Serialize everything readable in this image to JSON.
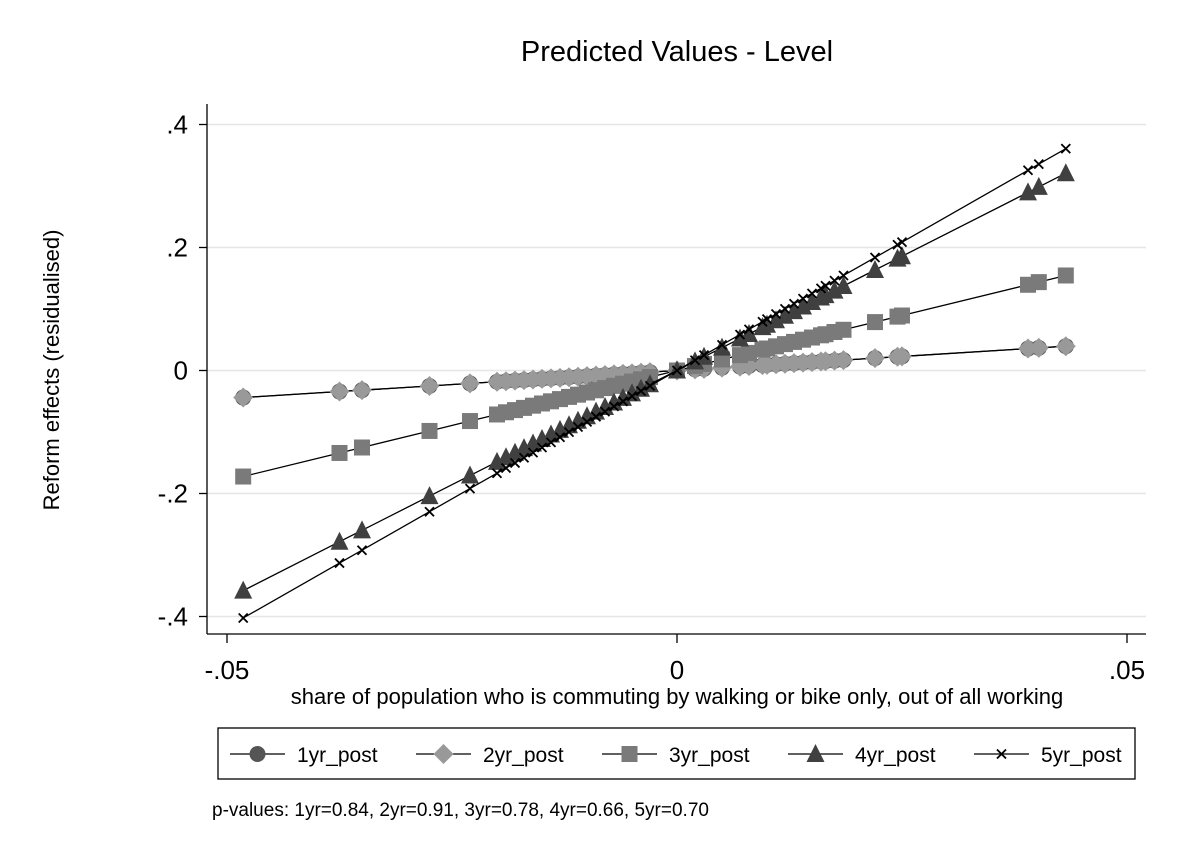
{
  "chart_data": {
    "type": "line",
    "title": "Predicted Values - Level",
    "xlabel": "share of population who is commuting by walking or bike only, out of all working",
    "ylabel": "Reform effects (residualised)",
    "xlim": [
      -0.05,
      0.05
    ],
    "ylim": [
      -0.4,
      0.4
    ],
    "x_ticks": [
      -0.05,
      0,
      0.05
    ],
    "x_tick_labels": [
      "-.05",
      "0",
      ".05"
    ],
    "y_ticks": [
      -0.4,
      -0.2,
      0,
      0.2,
      0.4
    ],
    "y_tick_labels": [
      "-.4",
      "-.2",
      "0",
      ".2",
      ".4"
    ],
    "grid": "horizontal",
    "legend_position": "bottom",
    "x": [
      -0.0482,
      -0.0375,
      -0.035,
      -0.0275,
      -0.023,
      -0.02,
      -0.019,
      -0.018,
      -0.017,
      -0.016,
      -0.015,
      -0.014,
      -0.013,
      -0.012,
      -0.011,
      -0.01,
      -0.009,
      -0.008,
      -0.007,
      -0.006,
      -0.005,
      -0.004,
      -0.003,
      0.0,
      0.002,
      0.003,
      0.005,
      0.007,
      0.008,
      0.0095,
      0.01,
      0.011,
      0.012,
      0.013,
      0.014,
      0.015,
      0.016,
      0.0165,
      0.0175,
      0.0185,
      0.022,
      0.0245,
      0.025,
      0.039,
      0.0402,
      0.0432
    ],
    "series": [
      {
        "name": "1yr_post",
        "marker": "circle",
        "color": "#555555",
        "values": [
          -0.044,
          -0.0342,
          -0.032,
          -0.0252,
          -0.021,
          -0.0183,
          -0.0174,
          -0.0165,
          -0.0156,
          -0.0146,
          -0.0137,
          -0.0128,
          -0.0119,
          -0.011,
          -0.0101,
          -0.0092,
          -0.0082,
          -0.0073,
          -0.0064,
          -0.0055,
          -0.0046,
          -0.0037,
          -0.0027,
          0.0,
          0.0018,
          0.0027,
          0.0046,
          0.0064,
          0.0073,
          0.0087,
          0.0092,
          0.0101,
          0.011,
          0.0119,
          0.0128,
          0.0137,
          0.0146,
          0.0151,
          0.016,
          0.0169,
          0.0201,
          0.0224,
          0.0229,
          0.0357,
          0.0368,
          0.0395
        ]
      },
      {
        "name": "2yr_post",
        "marker": "diamond",
        "color": "#999999",
        "values": [
          -0.044,
          -0.0342,
          -0.032,
          -0.0252,
          -0.021,
          -0.0183,
          -0.0174,
          -0.0165,
          -0.0156,
          -0.0146,
          -0.0137,
          -0.0128,
          -0.0119,
          -0.011,
          -0.0101,
          -0.0092,
          -0.0082,
          -0.0073,
          -0.0064,
          -0.0055,
          -0.0046,
          -0.0037,
          -0.0027,
          0.0,
          0.0018,
          0.0027,
          0.0046,
          0.0064,
          0.0073,
          0.0087,
          0.0092,
          0.0101,
          0.011,
          0.0119,
          0.0128,
          0.0137,
          0.0146,
          0.0151,
          0.016,
          0.0169,
          0.0201,
          0.0224,
          0.0229,
          0.0357,
          0.0368,
          0.0395
        ]
      },
      {
        "name": "3yr_post",
        "marker": "square",
        "color": "#7a7a7a",
        "values": [
          -0.1724,
          -0.1341,
          -0.1252,
          -0.0983,
          -0.0822,
          -0.0715,
          -0.0679,
          -0.0644,
          -0.0608,
          -0.0572,
          -0.0536,
          -0.0501,
          -0.0465,
          -0.0429,
          -0.0393,
          -0.0358,
          -0.0322,
          -0.0286,
          -0.025,
          -0.0215,
          -0.0179,
          -0.0143,
          -0.0107,
          0.0,
          0.0072,
          0.0107,
          0.0179,
          0.025,
          0.0286,
          0.034,
          0.0358,
          0.0393,
          0.0429,
          0.0465,
          0.0501,
          0.0536,
          0.0572,
          0.059,
          0.0626,
          0.0662,
          0.0787,
          0.0876,
          0.0894,
          0.1394,
          0.1437,
          0.1545
        ]
      },
      {
        "name": "4yr_post",
        "marker": "triangle",
        "color": "#404040",
        "values": [
          -0.3579,
          -0.2784,
          -0.2599,
          -0.2042,
          -0.1708,
          -0.1485,
          -0.1411,
          -0.1337,
          -0.1262,
          -0.1188,
          -0.1114,
          -0.104,
          -0.0965,
          -0.0891,
          -0.0817,
          -0.0743,
          -0.0668,
          -0.0594,
          -0.052,
          -0.0446,
          -0.0371,
          -0.0297,
          -0.0223,
          0.0,
          0.0149,
          0.0223,
          0.0371,
          0.052,
          0.0594,
          0.0705,
          0.0743,
          0.0817,
          0.0891,
          0.0965,
          0.104,
          0.1114,
          0.1188,
          0.1225,
          0.1299,
          0.1374,
          0.1634,
          0.1819,
          0.1857,
          0.2896,
          0.2985,
          0.3208
        ]
      },
      {
        "name": "5yr_post",
        "marker": "x",
        "color": "#000000",
        "values": [
          -0.4024,
          -0.3131,
          -0.2922,
          -0.2296,
          -0.192,
          -0.167,
          -0.1586,
          -0.1503,
          -0.1419,
          -0.1336,
          -0.1252,
          -0.1169,
          -0.1085,
          -0.1002,
          -0.0918,
          -0.0835,
          -0.0751,
          -0.0668,
          -0.0584,
          -0.0501,
          -0.0417,
          -0.0334,
          -0.025,
          0.0,
          0.0167,
          0.025,
          0.0417,
          0.0584,
          0.0668,
          0.0793,
          0.0835,
          0.0918,
          0.1002,
          0.1085,
          0.1169,
          0.1252,
          0.1336,
          0.1378,
          0.1461,
          0.1545,
          0.1837,
          0.2045,
          0.2087,
          0.3256,
          0.3356,
          0.3607
        ]
      }
    ],
    "note": "p-values: 1yr=0.84,  2yr=0.91,  3yr=0.78,  4yr=0.66,  5yr=0.70"
  }
}
